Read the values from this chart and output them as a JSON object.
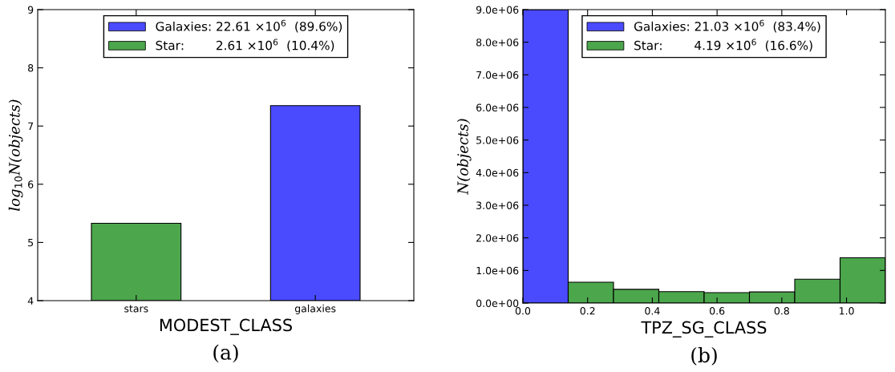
{
  "chart_data": [
    {
      "type": "bar",
      "categories": [
        "stars",
        "galaxies"
      ],
      "xlabel": "MODEST_CLASS",
      "ylabel": "log$_{10}$N(objects)",
      "series": [
        {
          "name": "Galaxies: 22.61 ×10$^{6}$  (89.6%)",
          "color": "#4a4aff",
          "values": [
            null,
            7.35
          ]
        },
        {
          "name": "Star:        2.61 ×10$^{6}$  (10.4%)",
          "color": "#4ca64c",
          "values": [
            5.33,
            null
          ]
        }
      ],
      "ylim": [
        4,
        9
      ],
      "yticks": [
        4,
        5,
        6,
        7,
        8,
        9
      ],
      "legend": "top",
      "grid": false,
      "annotations": [
        "(a)"
      ]
    },
    {
      "type": "histogram",
      "bins": [
        0,
        0.14,
        0.28,
        0.42,
        0.56,
        0.7,
        0.84,
        0.98,
        1.12
      ],
      "xlabel": "TPZ_SG_CLASS",
      "ylabel": "N(objects)",
      "series": [
        {
          "name": "Galaxies: 21.03 ×10$^{6}$  (83.4%)",
          "color": "#4a4aff",
          "values": [
            9000000.0,
            null,
            null,
            null,
            null,
            null,
            null,
            null
          ]
        },
        {
          "name": "Star:        4.19 ×10$^{6}$  (16.6%)",
          "color": "#4ca64c",
          "values": [
            null,
            640000.0,
            420000.0,
            350000.0,
            320000.0,
            340000.0,
            730000.0,
            1390000.0
          ]
        }
      ],
      "xlim": [
        0,
        1.12
      ],
      "xticks": [
        {
          "value": 0,
          "label": "0.0"
        },
        0.2,
        0.4,
        0.6,
        0.8,
        {
          "value": 1.0,
          "label": "1.0"
        }
      ],
      "ylim": [
        0,
        9000000.0
      ],
      "yticks": [
        {
          "value": 0,
          "label": "0.0e+00"
        },
        {
          "value": 1000000.0,
          "label": "1.0e+06"
        },
        {
          "value": 2000000.0,
          "label": "2.0e+06"
        },
        {
          "value": 3000000.0,
          "label": "3.0e+06"
        },
        {
          "value": 4000000.0,
          "label": "4.0e+06"
        },
        {
          "value": 5000000.0,
          "label": "5.0e+06"
        },
        {
          "value": 6000000.0,
          "label": "6.0e+06"
        },
        {
          "value": 7000000.0,
          "label": "7.0e+06"
        },
        {
          "value": 8000000.0,
          "label": "8.0e+06"
        },
        {
          "value": 9000000.0,
          "label": "9.0e+06"
        }
      ],
      "legend": "top",
      "grid": false,
      "annotations": [
        "(b)"
      ]
    }
  ]
}
